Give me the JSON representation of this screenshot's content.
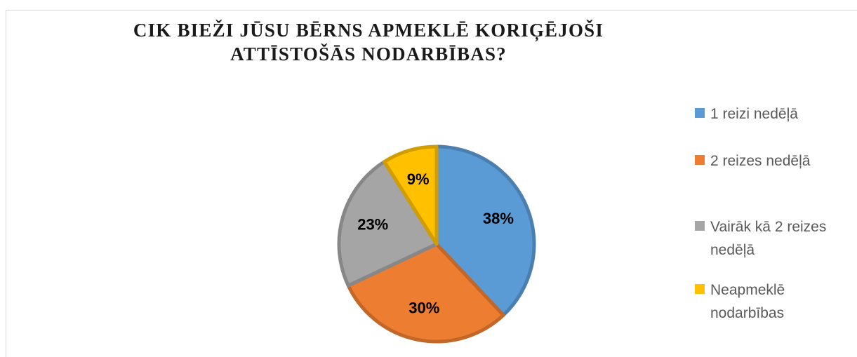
{
  "chart_data": {
    "type": "pie",
    "title": "CIK BIEŽI JŪSU BĒRNS APMEKLĒ KORIĢĒJOŠI ATTĪSTOŠĀS NODARBĪBAS?",
    "categories": [
      "1 reizi nedēļā",
      "2 reizes nedēļā",
      "Vairāk kā 2 reizes nedēļā",
      "Neapmeklē nodarbības"
    ],
    "values": [
      38,
      30,
      23,
      9
    ],
    "value_labels": [
      "38%",
      "30%",
      "23%",
      "9%"
    ],
    "colors": [
      "#5b9bd5",
      "#ed7d31",
      "#a5a5a5",
      "#ffc000"
    ],
    "legend": "right"
  }
}
